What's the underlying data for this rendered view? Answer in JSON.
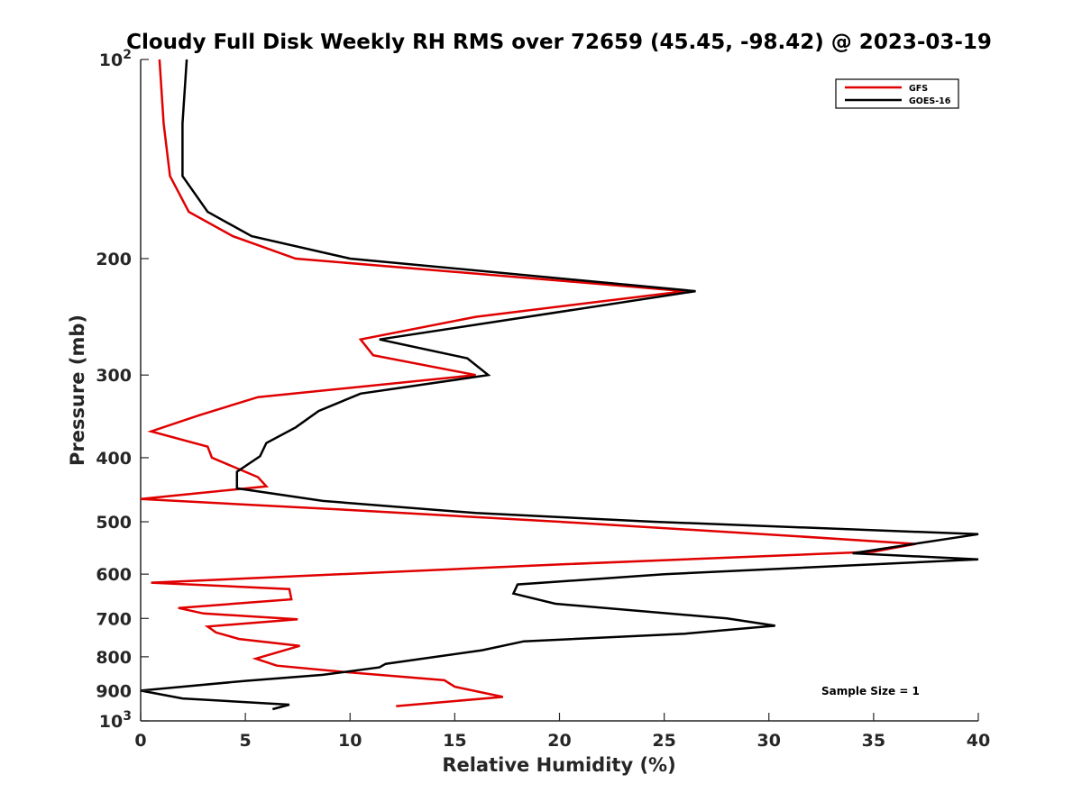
{
  "chart_data": {
    "type": "line",
    "title": "Cloudy Full Disk Weekly RH RMS over 72659 (45.45, -98.42) @ 2023-03-19",
    "xlabel": "Relative Humidity (%)",
    "ylabel": "Pressure (mb)",
    "xlim": [
      0,
      40
    ],
    "ylim": [
      100,
      1000
    ],
    "y_scale": "log",
    "y_reversed": true,
    "grid": false,
    "x_ticks": [
      "0",
      "5",
      "10",
      "15",
      "20",
      "25",
      "30",
      "35",
      "40"
    ],
    "y_ticks": [
      {
        "value": 100,
        "base": "10",
        "exp": "2"
      },
      {
        "value": 200,
        "label": "200"
      },
      {
        "value": 300,
        "label": "300"
      },
      {
        "value": 400,
        "label": "400"
      },
      {
        "value": 500,
        "label": "500"
      },
      {
        "value": 600,
        "label": "600"
      },
      {
        "value": 700,
        "label": "700"
      },
      {
        "value": 800,
        "label": "800"
      },
      {
        "value": 900,
        "label": "900"
      },
      {
        "value": 1000,
        "base": "10",
        "exp": "3"
      }
    ],
    "legend": {
      "position": "top-right"
    },
    "annotation": "Sample Size = 1",
    "series": [
      {
        "name": "GFS",
        "color": "#e00000",
        "points": [
          [
            0.9,
            100
          ],
          [
            1.1,
            125
          ],
          [
            1.4,
            150
          ],
          [
            2.3,
            170
          ],
          [
            4.4,
            185
          ],
          [
            7.4,
            200
          ],
          [
            26.0,
            224
          ],
          [
            16.0,
            245
          ],
          [
            10.5,
            265
          ],
          [
            11.1,
            280
          ],
          [
            16.0,
            300
          ],
          [
            5.6,
            324
          ],
          [
            2.8,
            345
          ],
          [
            0.5,
            365
          ],
          [
            3.2,
            385
          ],
          [
            3.4,
            400
          ],
          [
            5.6,
            428
          ],
          [
            6.0,
            442
          ],
          [
            0.0,
            462
          ],
          [
            10.0,
            480
          ],
          [
            20.0,
            500
          ],
          [
            31.0,
            525
          ],
          [
            37.0,
            540
          ],
          [
            35.0,
            555
          ],
          [
            20.0,
            580
          ],
          [
            0.5,
            618
          ],
          [
            7.1,
            632
          ],
          [
            7.2,
            655
          ],
          [
            1.8,
            675
          ],
          [
            3.0,
            688
          ],
          [
            7.5,
            702
          ],
          [
            3.2,
            720
          ],
          [
            3.6,
            735
          ],
          [
            4.7,
            752
          ],
          [
            7.6,
            770
          ],
          [
            5.5,
            805
          ],
          [
            6.5,
            825
          ],
          [
            10.0,
            845
          ],
          [
            14.5,
            868
          ],
          [
            15.0,
            888
          ],
          [
            17.3,
            920
          ],
          [
            12.2,
            950
          ]
        ]
      },
      {
        "name": "GOES-16",
        "color": "#000000",
        "points": [
          [
            2.2,
            100
          ],
          [
            2.0,
            125
          ],
          [
            2.0,
            150
          ],
          [
            3.2,
            170
          ],
          [
            5.3,
            185
          ],
          [
            10.0,
            200
          ],
          [
            26.5,
            224
          ],
          [
            11.4,
            265
          ],
          [
            15.6,
            283
          ],
          [
            16.6,
            300
          ],
          [
            10.5,
            320
          ],
          [
            8.5,
            340
          ],
          [
            7.4,
            360
          ],
          [
            6.0,
            380
          ],
          [
            5.7,
            398
          ],
          [
            4.6,
            420
          ],
          [
            4.6,
            445
          ],
          [
            8.7,
            465
          ],
          [
            16.0,
            485
          ],
          [
            24.5,
            500
          ],
          [
            40.0,
            522
          ],
          [
            34.0,
            558
          ],
          [
            40.0,
            570
          ],
          [
            25.0,
            600
          ],
          [
            18.0,
            622
          ],
          [
            17.8,
            642
          ],
          [
            19.8,
            665
          ],
          [
            28.0,
            700
          ],
          [
            30.3,
            718
          ],
          [
            26.0,
            738
          ],
          [
            18.3,
            758
          ],
          [
            16.3,
            782
          ],
          [
            11.7,
            820
          ],
          [
            11.4,
            830
          ],
          [
            8.7,
            852
          ],
          [
            5.0,
            870
          ],
          [
            0.0,
            900
          ],
          [
            2.0,
            925
          ],
          [
            7.1,
            945
          ],
          [
            6.3,
            960
          ]
        ]
      }
    ]
  }
}
